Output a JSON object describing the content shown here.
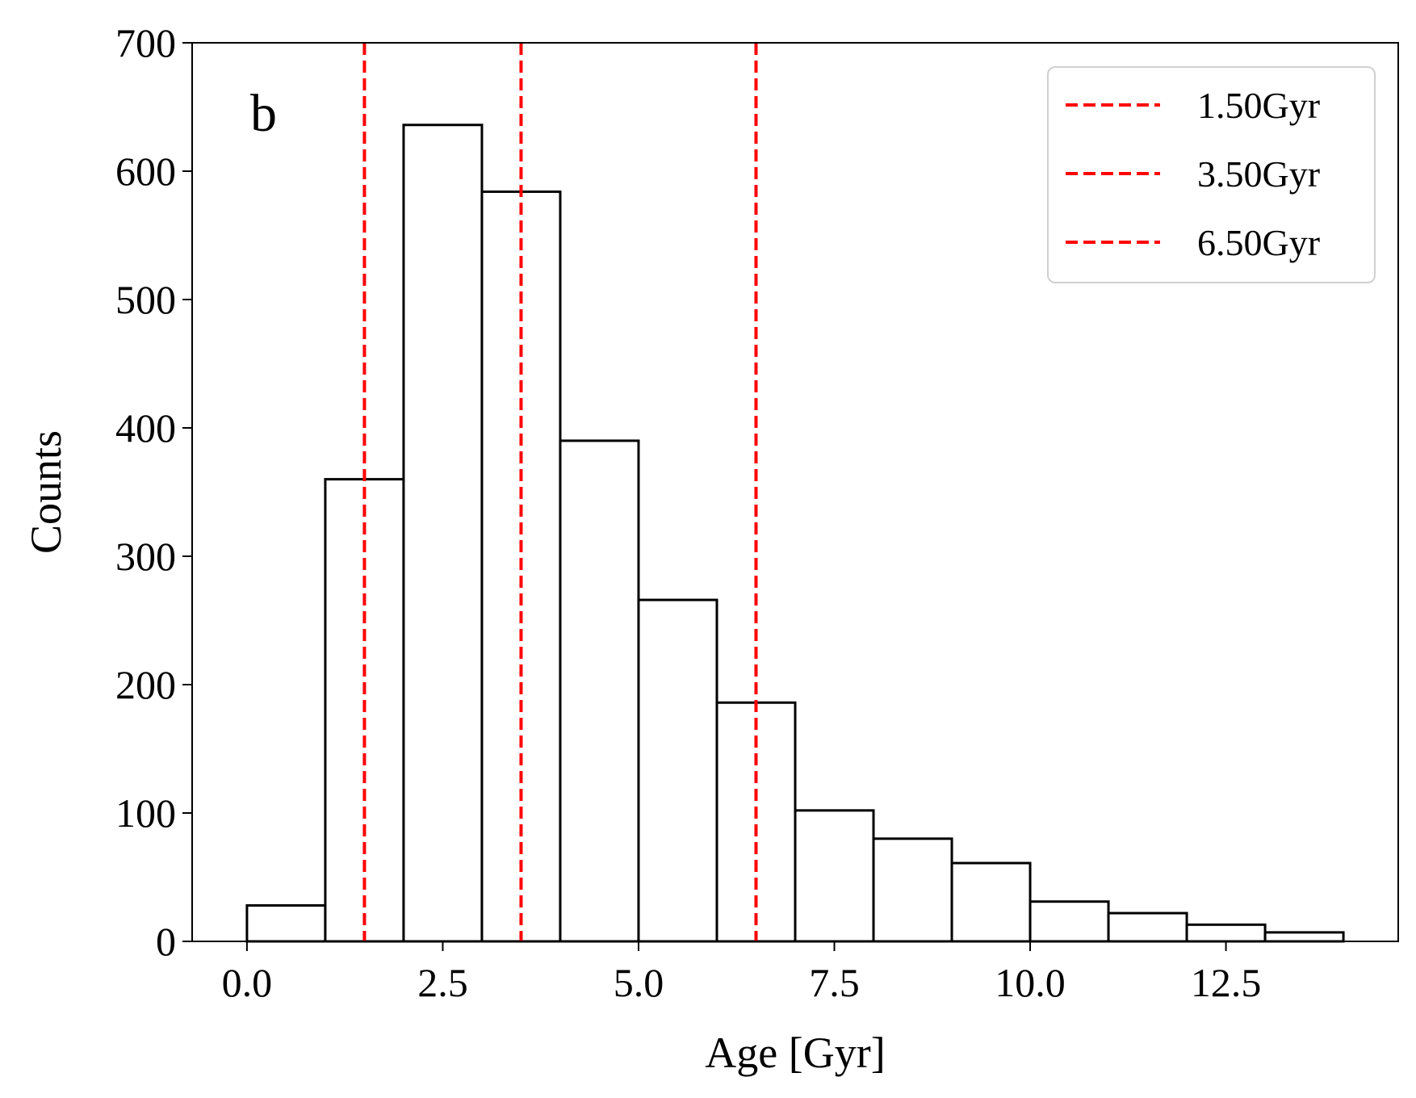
{
  "chart_data": {
    "type": "histogram",
    "panel_label": "b",
    "xlabel": "Age [Gyr]",
    "ylabel": "Counts",
    "xlim": [
      -0.7,
      14.7
    ],
    "ylim": [
      0,
      700
    ],
    "xticks": [
      0.0,
      2.5,
      5.0,
      7.5,
      10.0,
      12.5
    ],
    "xtick_labels": [
      "0.0",
      "2.5",
      "5.0",
      "7.5",
      "10.0",
      "12.5"
    ],
    "yticks": [
      0,
      100,
      200,
      300,
      400,
      500,
      600,
      700
    ],
    "ytick_labels": [
      "0",
      "100",
      "200",
      "300",
      "400",
      "500",
      "600",
      "700"
    ],
    "grid": false,
    "bin_edges": [
      0,
      1,
      2,
      3,
      4,
      5,
      6,
      7,
      8,
      9,
      10,
      11,
      12,
      13,
      14
    ],
    "counts": [
      28,
      360,
      636,
      584,
      390,
      266,
      186,
      102,
      80,
      61,
      31,
      22,
      13,
      7
    ],
    "bar_fill": "#ffffff",
    "bar_edge": "#000000",
    "vlines": [
      {
        "x": 1.5,
        "label": "1.50Gyr",
        "color": "#ff0000",
        "style": "dashed"
      },
      {
        "x": 3.5,
        "label": "3.50Gyr",
        "color": "#ff0000",
        "style": "dashed"
      },
      {
        "x": 6.5,
        "label": "6.50Gyr",
        "color": "#ff0000",
        "style": "dashed"
      }
    ],
    "legend_position": "top-right"
  }
}
